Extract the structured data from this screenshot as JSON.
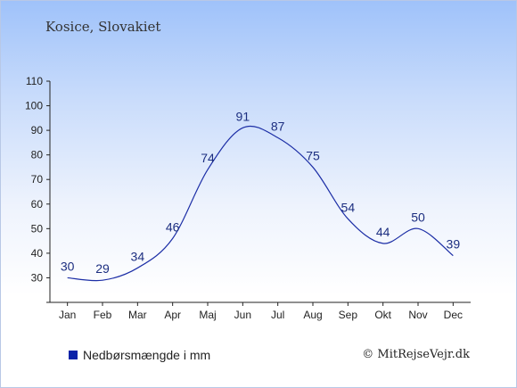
{
  "location": "Kosice, Slovakiet",
  "legend": {
    "label": "Nedbørsmængde i mm",
    "color": "#0a22a8"
  },
  "credit": "© MitRejseVejr.dk",
  "chart_data": {
    "type": "line",
    "title": "Kosice, Slovakiet",
    "xlabel": "",
    "ylabel": "",
    "categories": [
      "Jan",
      "Feb",
      "Mar",
      "Apr",
      "Maj",
      "Jun",
      "Jul",
      "Aug",
      "Sep",
      "Okt",
      "Nov",
      "Dec"
    ],
    "series": [
      {
        "name": "Nedbørsmængde i mm",
        "values": [
          30,
          29,
          34,
          46,
          74,
          91,
          87,
          75,
          54,
          44,
          50,
          39
        ]
      }
    ],
    "ylim": [
      20,
      110
    ],
    "yticks": [
      20,
      30,
      40,
      50,
      60,
      70,
      80,
      90,
      100,
      110
    ],
    "data_labels": true,
    "line_color": "#1c2ea6",
    "label_color": "#1c2e80",
    "grid": false
  }
}
